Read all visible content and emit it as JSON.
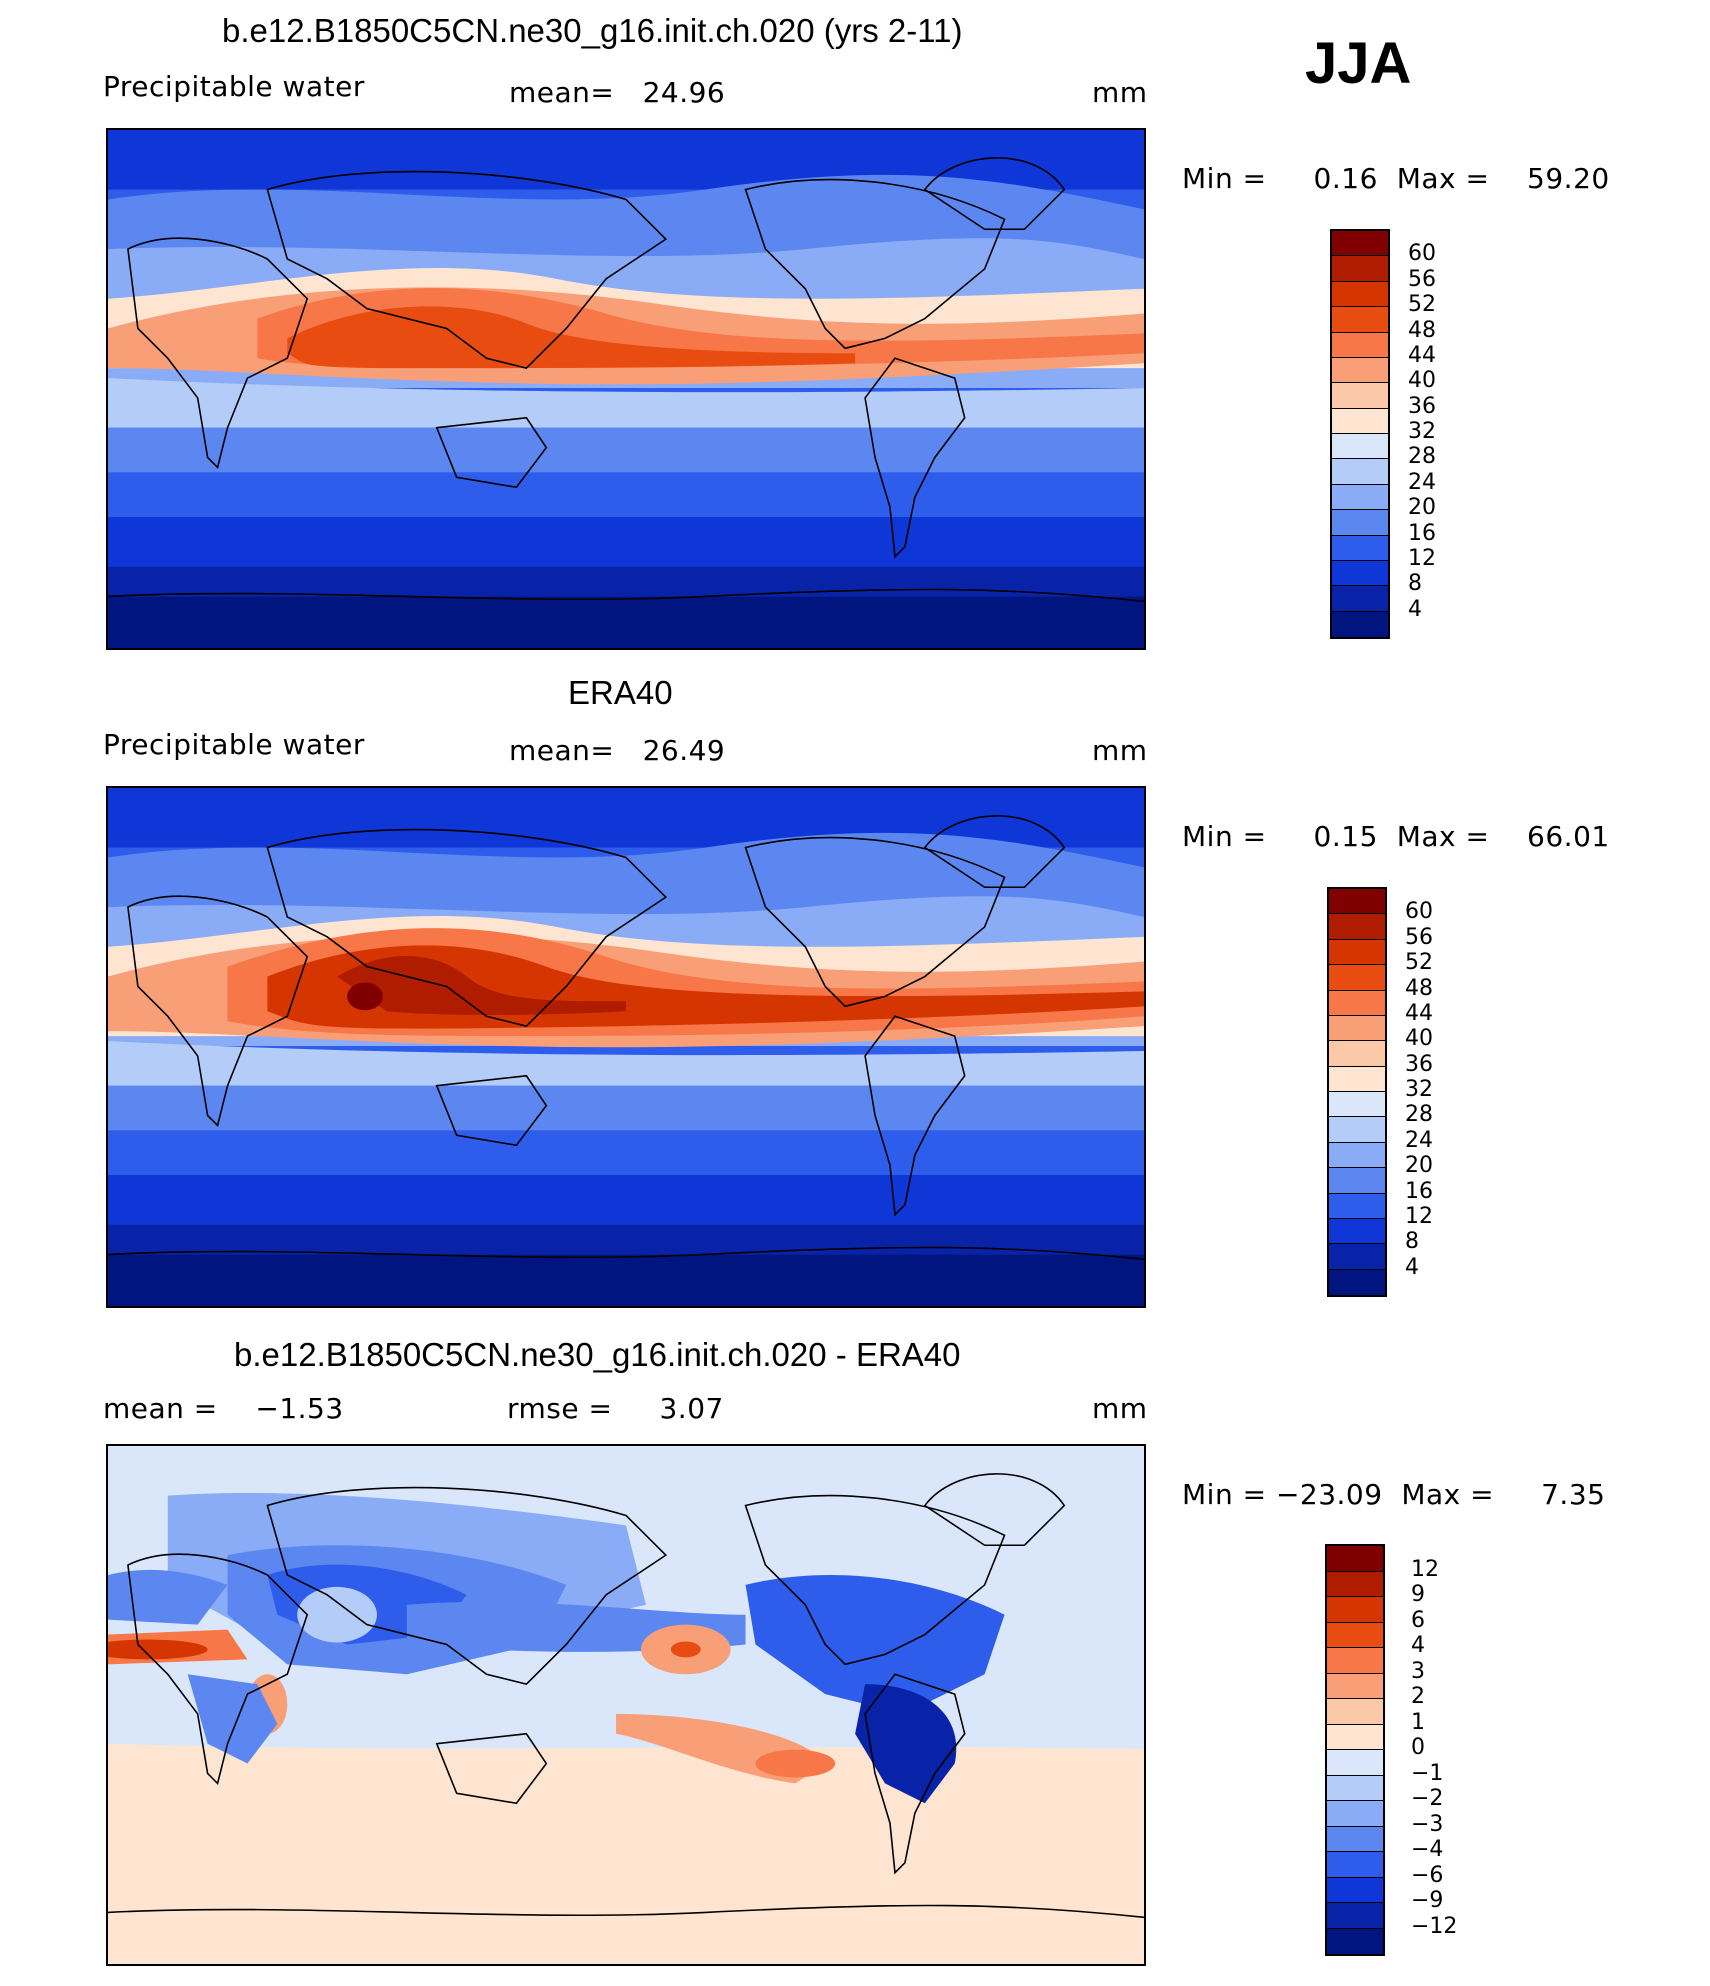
{
  "season": "JJA",
  "panels": [
    {
      "title": "b.e12.B1850C5CN.ne30_g16.init.ch.020 (yrs 2-11)",
      "variable": "Precipitable water",
      "stat1": "mean=   24.96",
      "stat2": "",
      "units": "mm",
      "minmax": "Min =     0.16  Max =    59.20",
      "colorbar": {
        "labels": [
          "60",
          "56",
          "52",
          "48",
          "44",
          "40",
          "36",
          "32",
          "28",
          "24",
          "20",
          "16",
          "12",
          "8",
          "4"
        ],
        "colors": [
          "#800000",
          "#b01c00",
          "#d53500",
          "#e84c10",
          "#f77748",
          "#f89f78",
          "#fbc9a8",
          "#fde5d2",
          "#dae7fb",
          "#b3cdf8",
          "#8aabf5",
          "#5c87f0",
          "#2f5deb",
          "#0f36d6",
          "#0823a8",
          "#00157f"
        ]
      }
    },
    {
      "title": "ERA40",
      "variable": "Precipitable water",
      "stat1": "mean=   26.49",
      "stat2": "",
      "units": "mm",
      "minmax": "Min =     0.15  Max =    66.01",
      "colorbar": {
        "labels": [
          "60",
          "56",
          "52",
          "48",
          "44",
          "40",
          "36",
          "32",
          "28",
          "24",
          "20",
          "16",
          "12",
          "8",
          "4"
        ],
        "colors": [
          "#800000",
          "#b01c00",
          "#d53500",
          "#e84c10",
          "#f77748",
          "#f89f78",
          "#fbc9a8",
          "#fde5d2",
          "#dae7fb",
          "#b3cdf8",
          "#8aabf5",
          "#5c87f0",
          "#2f5deb",
          "#0f36d6",
          "#0823a8",
          "#00157f"
        ]
      }
    },
    {
      "title": "b.e12.B1850C5CN.ne30_g16.init.ch.020 - ERA40",
      "variable": "",
      "stat1": "mean =    −1.53",
      "stat2": "rmse =     3.07",
      "units": "mm",
      "minmax": "Min = −23.09  Max =     7.35",
      "colorbar": {
        "labels": [
          "12",
          "9",
          "6",
          "4",
          "3",
          "2",
          "1",
          "0",
          "−1",
          "−2",
          "−3",
          "−4",
          "−6",
          "−9",
          "−12"
        ],
        "colors": [
          "#800000",
          "#b01c00",
          "#d53500",
          "#e84c10",
          "#f77748",
          "#f89f78",
          "#fbc9a8",
          "#fde5d2",
          "#dae7fb",
          "#b3cdf8",
          "#8aabf5",
          "#5c87f0",
          "#2f5deb",
          "#0f36d6",
          "#0823a8",
          "#00157f"
        ]
      }
    }
  ],
  "palette": {
    "deep_blue": "#00157f",
    "blue": "#2f5deb",
    "light_blue": "#b3cdf8",
    "pale": "#fde5d2",
    "orange": "#f77748",
    "red": "#d53500",
    "dark_red": "#800000"
  }
}
